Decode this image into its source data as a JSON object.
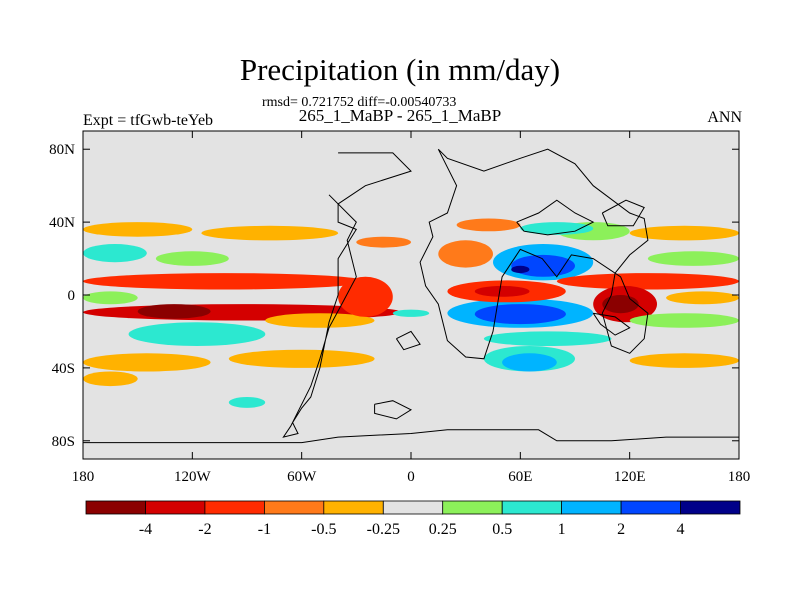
{
  "header": {
    "title": "Precipitation (in mm/day)",
    "stats": "rmsd= 0.721752 diff=-0.00540733",
    "cases": "265_1_MaBP - 265_1_MaBP",
    "experiment": "Expt = tfGwb-teYeb",
    "season": "ANN"
  },
  "chart_data": {
    "type": "heatmap",
    "title": "Precipitation (in mm/day)",
    "subtitle": "265_1_MaBP - 265_1_MaBP",
    "xlabel": "",
    "ylabel": "",
    "xlim": [
      -180,
      180
    ],
    "ylim": [
      -90,
      90
    ],
    "x_ticks": [
      {
        "value": -180,
        "label": "180"
      },
      {
        "value": -120,
        "label": "120W"
      },
      {
        "value": -60,
        "label": "60W"
      },
      {
        "value": 0,
        "label": "0"
      },
      {
        "value": 60,
        "label": "60E"
      },
      {
        "value": 120,
        "label": "120E"
      },
      {
        "value": 180,
        "label": "180"
      }
    ],
    "y_ticks": [
      {
        "value": 80,
        "label": "80N"
      },
      {
        "value": 40,
        "label": "40N"
      },
      {
        "value": 0,
        "label": "0"
      },
      {
        "value": -40,
        "label": "40S"
      },
      {
        "value": -80,
        "label": "80S"
      }
    ],
    "background_color": "#e3e3e3",
    "colorbar": {
      "colors": [
        "#8b0000",
        "#d40000",
        "#ff2b00",
        "#ff7a1a",
        "#ffb200",
        "#e3e3e3",
        "#8cf05a",
        "#2ce8d0",
        "#00b4ff",
        "#0046ff",
        "#000089"
      ],
      "labels": [
        "-4",
        "-2",
        "-1",
        "-0.5",
        "-0.25",
        "0.25",
        "0.5",
        "1",
        "2",
        "4"
      ]
    },
    "regions": [
      {
        "lon": [
          -180,
          -25
        ],
        "lat": [
          3,
          12
        ],
        "level": -1
      },
      {
        "lon": [
          -180,
          -5
        ],
        "lat": [
          -14,
          -5
        ],
        "level": -2
      },
      {
        "lon": [
          -150,
          -110
        ],
        "lat": [
          -13,
          -5
        ],
        "level": -4
      },
      {
        "lon": [
          -180,
          -150
        ],
        "lat": [
          -5,
          2
        ],
        "level": 0.25
      },
      {
        "lon": [
          -155,
          -80
        ],
        "lat": [
          -28,
          -15
        ],
        "level": 0.5
      },
      {
        "lon": [
          -80,
          -20
        ],
        "lat": [
          -18,
          -10
        ],
        "level": -0.25
      },
      {
        "lon": [
          -180,
          -120
        ],
        "lat": [
          32,
          40
        ],
        "level": -0.25
      },
      {
        "lon": [
          -115,
          -40
        ],
        "lat": [
          30,
          38
        ],
        "level": -0.25
      },
      {
        "lon": [
          -180,
          -145
        ],
        "lat": [
          18,
          28
        ],
        "level": 0.5
      },
      {
        "lon": [
          -140,
          -100
        ],
        "lat": [
          16,
          24
        ],
        "level": 0.25
      },
      {
        "lon": [
          -180,
          -110
        ],
        "lat": [
          -42,
          -32
        ],
        "level": -0.25
      },
      {
        "lon": [
          -100,
          -20
        ],
        "lat": [
          -40,
          -30
        ],
        "level": -0.25
      },
      {
        "lon": [
          -180,
          -150
        ],
        "lat": [
          -50,
          -42
        ],
        "level": -0.25
      },
      {
        "lon": [
          -100,
          -80
        ],
        "lat": [
          -62,
          -56
        ],
        "level": 0.5
      },
      {
        "lon": [
          -40,
          -10
        ],
        "lat": [
          -12,
          10
        ],
        "level": -1
      },
      {
        "lon": [
          -10,
          10
        ],
        "lat": [
          -12,
          -8
        ],
        "level": 0.5
      },
      {
        "lon": [
          20,
          100
        ],
        "lat": [
          -18,
          -2
        ],
        "level": 1
      },
      {
        "lon": [
          35,
          85
        ],
        "lat": [
          -16,
          -5
        ],
        "level": 2
      },
      {
        "lon": [
          20,
          85
        ],
        "lat": [
          -4,
          8
        ],
        "level": -1
      },
      {
        "lon": [
          35,
          65
        ],
        "lat": [
          -1,
          5
        ],
        "level": -2
      },
      {
        "lon": [
          45,
          100
        ],
        "lat": [
          8,
          28
        ],
        "level": 1
      },
      {
        "lon": [
          55,
          90
        ],
        "lat": [
          10,
          22
        ],
        "level": 2
      },
      {
        "lon": [
          55,
          65
        ],
        "lat": [
          12,
          16
        ],
        "level": 4
      },
      {
        "lon": [
          40,
          110
        ],
        "lat": [
          -28,
          -20
        ],
        "level": 0.5
      },
      {
        "lon": [
          40,
          90
        ],
        "lat": [
          -42,
          -28
        ],
        "level": 0.5
      },
      {
        "lon": [
          50,
          80
        ],
        "lat": [
          -42,
          -32
        ],
        "level": 1
      },
      {
        "lon": [
          80,
          180
        ],
        "lat": [
          3,
          12
        ],
        "level": -1
      },
      {
        "lon": [
          100,
          135
        ],
        "lat": [
          -15,
          5
        ],
        "level": -2
      },
      {
        "lon": [
          105,
          125
        ],
        "lat": [
          -10,
          0
        ],
        "level": -4
      },
      {
        "lon": [
          140,
          180
        ],
        "lat": [
          -5,
          2
        ],
        "level": -0.25
      },
      {
        "lon": [
          120,
          180
        ],
        "lat": [
          -18,
          -10
        ],
        "level": 0.25
      },
      {
        "lon": [
          120,
          180
        ],
        "lat": [
          -40,
          -32
        ],
        "level": -0.25
      },
      {
        "lon": [
          130,
          180
        ],
        "lat": [
          16,
          24
        ],
        "level": 0.25
      },
      {
        "lon": [
          120,
          180
        ],
        "lat": [
          30,
          38
        ],
        "level": -0.25
      },
      {
        "lon": [
          80,
          120
        ],
        "lat": [
          30,
          40
        ],
        "level": 0.25
      },
      {
        "lon": [
          60,
          100
        ],
        "lat": [
          33,
          40
        ],
        "level": 0.5
      },
      {
        "lon": [
          -30,
          0
        ],
        "lat": [
          26,
          32
        ],
        "level": -0.5
      },
      {
        "lon": [
          15,
          45
        ],
        "lat": [
          15,
          30
        ],
        "level": -0.5
      },
      {
        "lon": [
          25,
          60
        ],
        "lat": [
          35,
          42
        ],
        "level": -0.5
      }
    ],
    "coastlines": [
      [
        [
          -180,
          -81
        ],
        [
          -60,
          -81
        ],
        [
          -40,
          -78
        ],
        [
          0,
          -76
        ],
        [
          20,
          -74
        ],
        [
          50,
          -74
        ],
        [
          70,
          -74
        ],
        [
          80,
          -80
        ],
        [
          110,
          -80
        ],
        [
          140,
          -78
        ],
        [
          180,
          -78
        ]
      ],
      [
        [
          -40,
          78
        ],
        [
          -10,
          78
        ],
        [
          0,
          68
        ],
        [
          -25,
          60
        ],
        [
          -40,
          50
        ],
        [
          -40,
          40
        ],
        [
          -30,
          36
        ],
        [
          -40,
          20
        ],
        [
          -40,
          0
        ],
        [
          -45,
          -15
        ],
        [
          -50,
          -40
        ],
        [
          -55,
          -56
        ],
        [
          -60,
          -62
        ],
        [
          -65,
          -70
        ],
        [
          -62,
          -76
        ],
        [
          -70,
          -78
        ],
        [
          -66,
          -72
        ],
        [
          -55,
          -50
        ],
        [
          -50,
          -35
        ],
        [
          -45,
          -18
        ],
        [
          -38,
          -5
        ],
        [
          -30,
          10
        ],
        [
          -35,
          30
        ],
        [
          -30,
          40
        ],
        [
          -45,
          55
        ]
      ],
      [
        [
          15,
          80
        ],
        [
          20,
          75
        ],
        [
          40,
          68
        ],
        [
          60,
          75
        ],
        [
          75,
          80
        ],
        [
          90,
          72
        ],
        [
          100,
          60
        ],
        [
          120,
          45
        ],
        [
          128,
          42
        ],
        [
          130,
          30
        ],
        [
          120,
          22
        ],
        [
          112,
          12
        ],
        [
          110,
          0
        ],
        [
          105,
          -10
        ],
        [
          110,
          -28
        ],
        [
          120,
          -32
        ],
        [
          128,
          -24
        ],
        [
          130,
          -10
        ],
        [
          120,
          -2
        ],
        [
          115,
          10
        ],
        [
          100,
          20
        ],
        [
          88,
          22
        ],
        [
          80,
          10
        ],
        [
          72,
          20
        ],
        [
          60,
          25
        ],
        [
          50,
          10
        ],
        [
          45,
          -20
        ],
        [
          40,
          -35
        ],
        [
          30,
          -34
        ],
        [
          20,
          -25
        ],
        [
          15,
          -5
        ],
        [
          8,
          5
        ],
        [
          5,
          18
        ],
        [
          12,
          32
        ],
        [
          10,
          40
        ],
        [
          20,
          45
        ],
        [
          25,
          60
        ],
        [
          15,
          80
        ]
      ],
      [
        [
          58,
          40
        ],
        [
          70,
          45
        ],
        [
          80,
          52
        ],
        [
          90,
          45
        ],
        [
          100,
          40
        ],
        [
          90,
          35
        ],
        [
          75,
          33
        ],
        [
          62,
          35
        ],
        [
          58,
          40
        ]
      ],
      [
        [
          -20,
          -60
        ],
        [
          -10,
          -58
        ],
        [
          0,
          -63
        ],
        [
          -8,
          -68
        ],
        [
          -20,
          -65
        ],
        [
          -20,
          -60
        ]
      ],
      [
        [
          -8,
          -24
        ],
        [
          0,
          -20
        ],
        [
          5,
          -27
        ],
        [
          -4,
          -30
        ],
        [
          -8,
          -24
        ]
      ],
      [
        [
          105,
          45
        ],
        [
          118,
          52
        ],
        [
          128,
          48
        ],
        [
          122,
          38
        ],
        [
          108,
          38
        ],
        [
          105,
          45
        ]
      ],
      [
        [
          100,
          -10
        ],
        [
          112,
          -12
        ],
        [
          120,
          -18
        ],
        [
          112,
          -22
        ],
        [
          104,
          -16
        ],
        [
          100,
          -10
        ]
      ]
    ]
  }
}
